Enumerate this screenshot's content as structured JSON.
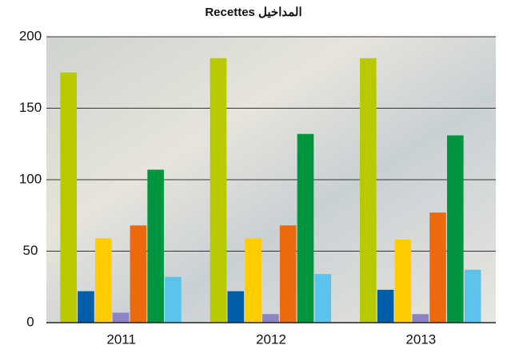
{
  "chart_data": {
    "type": "bar",
    "title": "Recettes المداخيل",
    "categories": [
      "2011",
      "2012",
      "2013"
    ],
    "series": [
      {
        "color": "#b8c900",
        "values": [
          175,
          185,
          185
        ]
      },
      {
        "color": "#005fa8",
        "values": [
          22,
          22,
          23
        ]
      },
      {
        "color": "#ffcc00",
        "values": [
          59,
          59,
          58
        ]
      },
      {
        "color": "#8c84c4",
        "values": [
          7,
          6,
          6
        ]
      },
      {
        "color": "#ec6a0d",
        "values": [
          68,
          68,
          77
        ]
      },
      {
        "color": "#00953f",
        "values": [
          107,
          132,
          131
        ]
      },
      {
        "color": "#5cc4ec",
        "values": [
          32,
          34,
          37
        ]
      }
    ],
    "ylim": [
      0,
      200
    ],
    "yticks": [
      0,
      50,
      100,
      150,
      200
    ],
    "grid": true
  }
}
